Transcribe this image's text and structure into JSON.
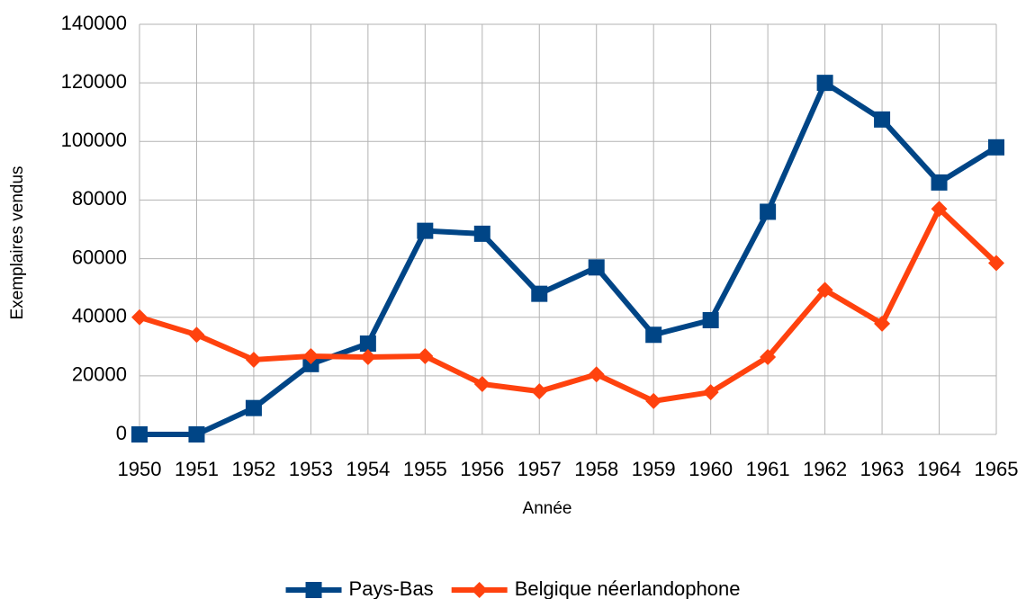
{
  "chart_data": {
    "type": "line",
    "x_label": "Année",
    "y_label": "Exemplaires vendus",
    "categories": [
      "1950",
      "1951",
      "1952",
      "1953",
      "1954",
      "1955",
      "1956",
      "1957",
      "1958",
      "1959",
      "1960",
      "1961",
      "1962",
      "1963",
      "1964",
      "1965"
    ],
    "series": [
      {
        "name": "Pays-Bas",
        "color": "#004586",
        "marker": "square",
        "values": [
          0,
          0,
          9000,
          24000,
          31000,
          69500,
          68500,
          48000,
          57000,
          34000,
          39000,
          76000,
          120000,
          107500,
          86000,
          98000
        ]
      },
      {
        "name": "Belgique néerlandophone",
        "color": "#ff420e",
        "marker": "diamond",
        "values": [
          40000,
          34000,
          25500,
          26700,
          26400,
          26700,
          17200,
          14700,
          20500,
          11400,
          14400,
          26400,
          49300,
          37800,
          77000,
          58500
        ]
      }
    ],
    "ylim": [
      0,
      140000
    ],
    "yticks": [
      0,
      20000,
      40000,
      60000,
      80000,
      100000,
      120000,
      140000
    ],
    "grid": true,
    "legend": "bottom"
  }
}
